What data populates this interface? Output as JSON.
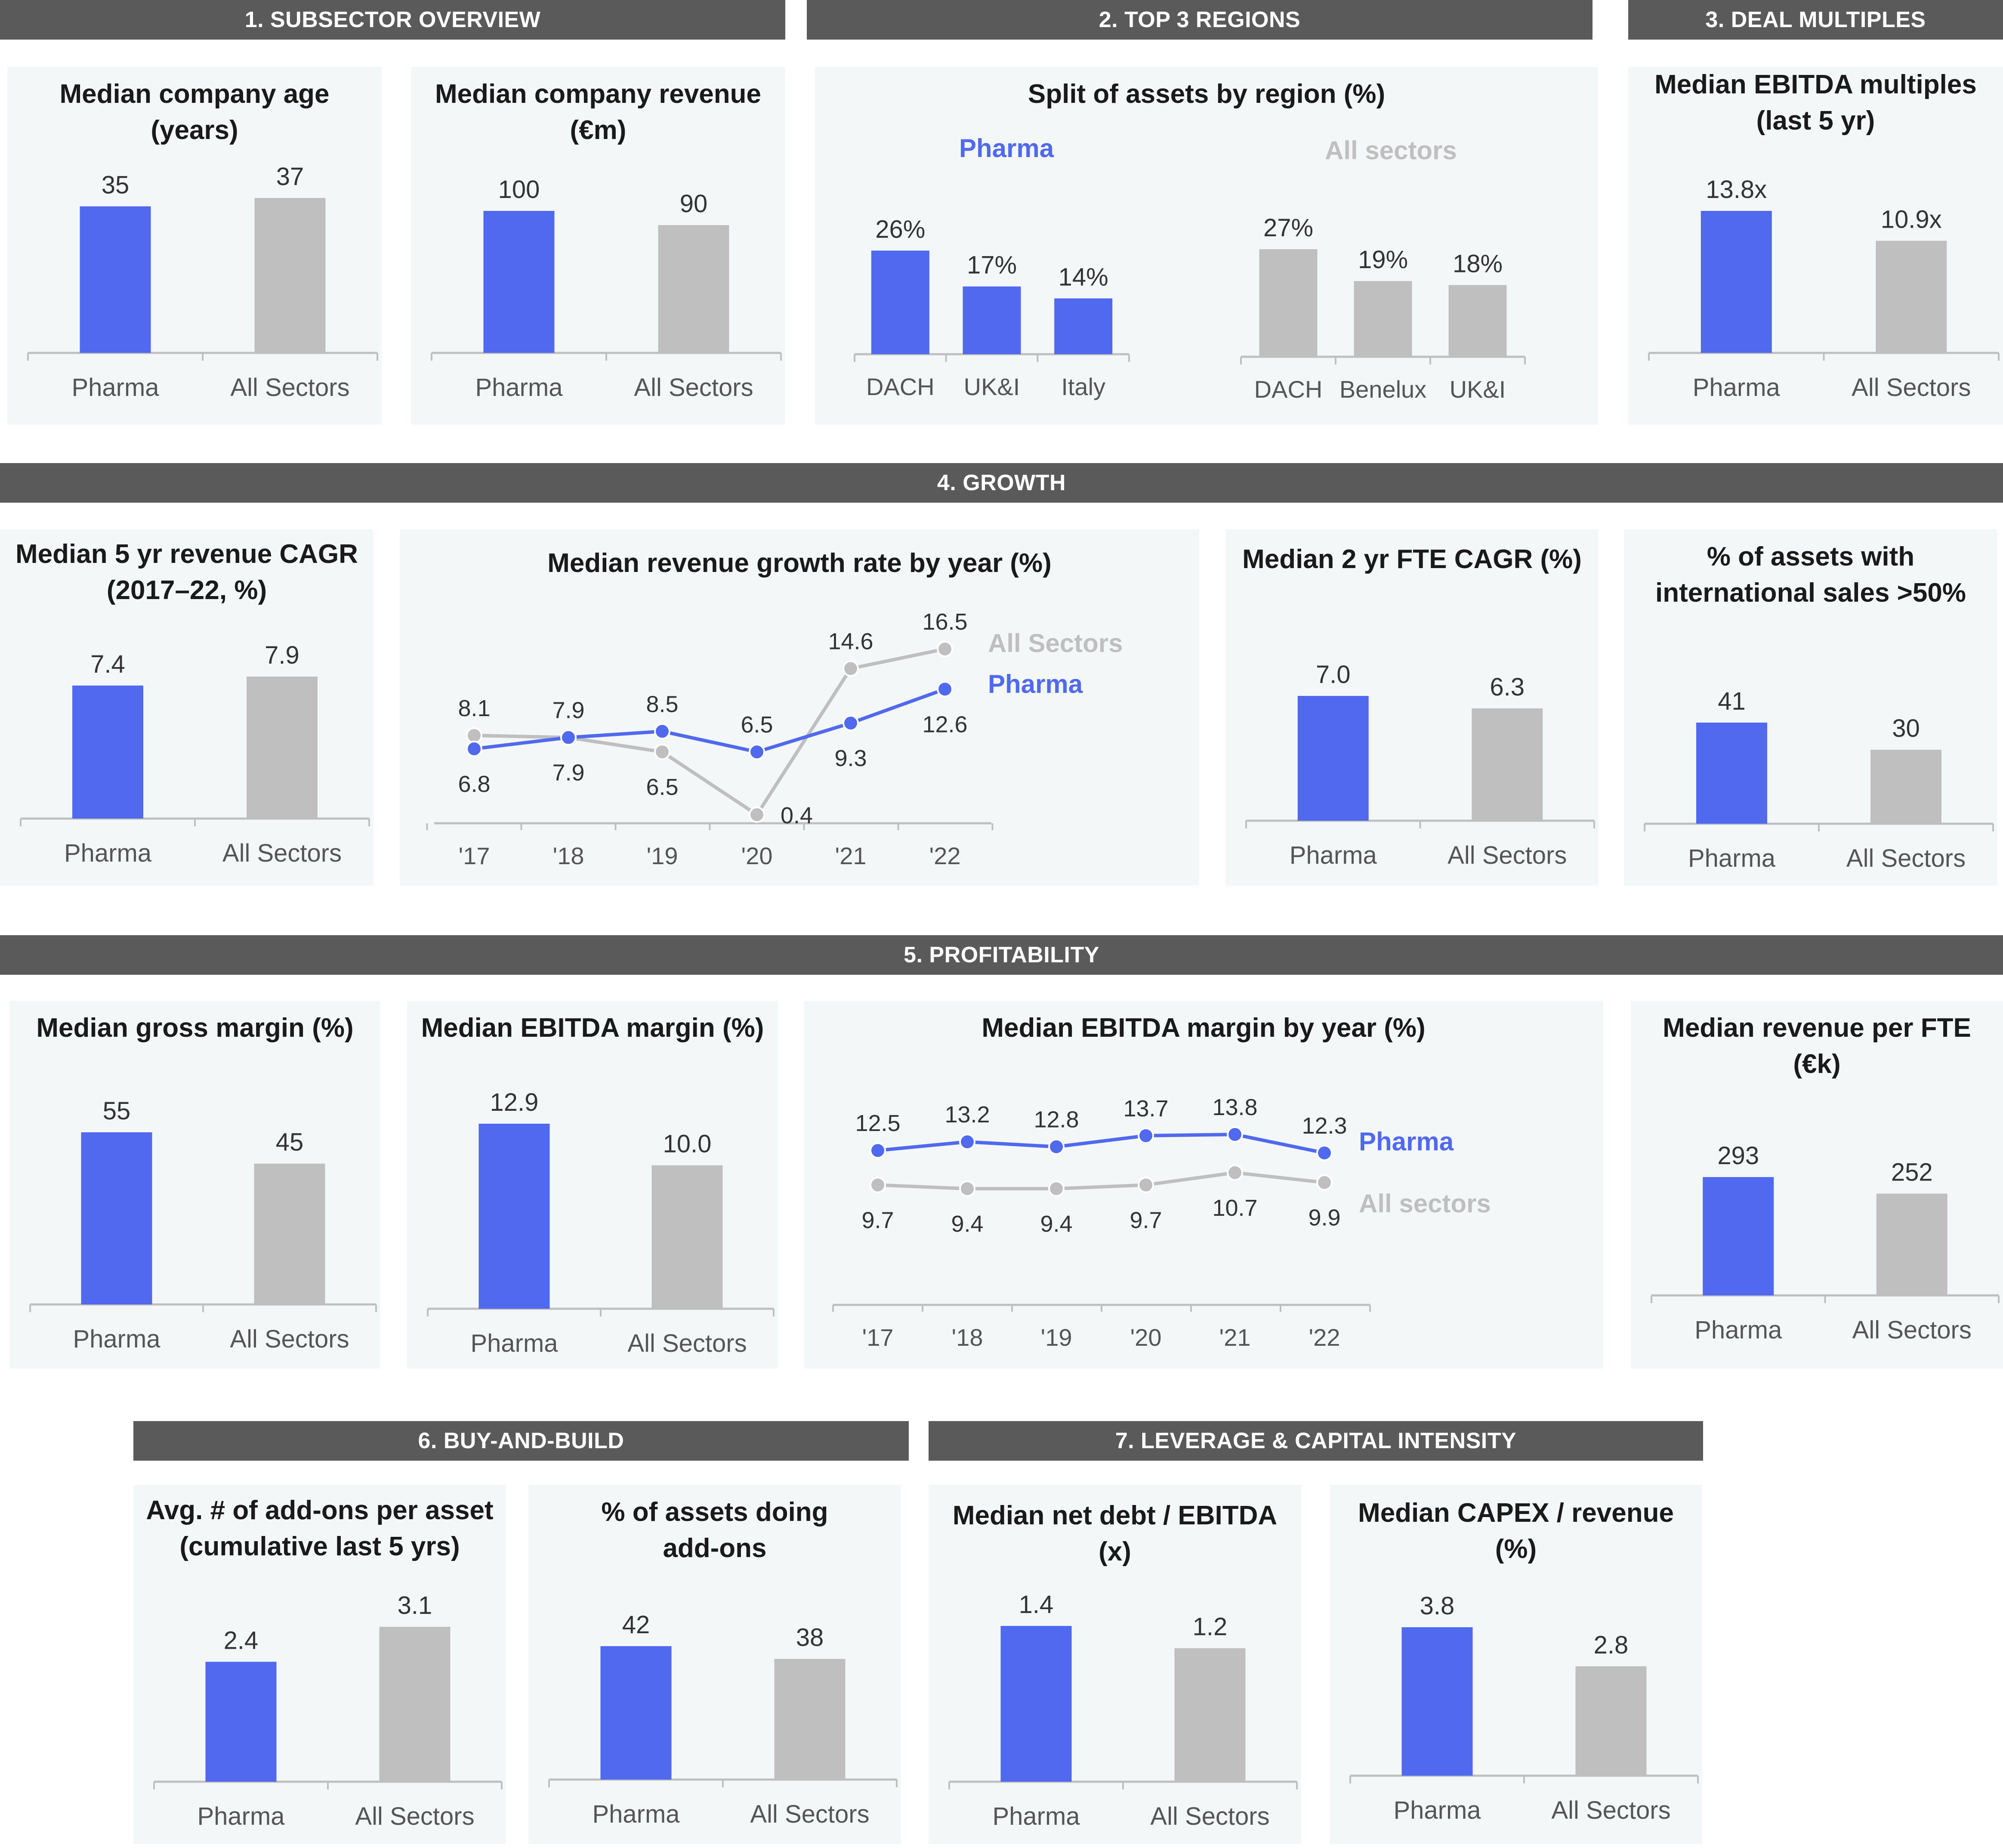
{
  "colors": {
    "pharma": "#5069ee",
    "all": "#bfbfbf",
    "header_bg": "#5a5a5a",
    "panel_bg": "#f4f7f8"
  },
  "sections": {
    "s1": "1. SUBSECTOR OVERVIEW",
    "s2": "2. TOP 3 REGIONS",
    "s3": "3. DEAL MULTIPLES",
    "s4": "4. GROWTH",
    "s5": "5.  PROFITABILITY",
    "s6": "6. BUY-AND-BUILD",
    "s7": "7. LEVERAGE & CAPITAL INTENSITY"
  },
  "region_labels": {
    "pharma": "Pharma",
    "all": "All sectors"
  },
  "chart_data": [
    {
      "id": "age",
      "type": "bar",
      "title1": "Median company age",
      "title2": "(years)",
      "categories": [
        "Pharma",
        "All Sectors"
      ],
      "values": [
        35,
        37
      ],
      "labels": [
        "35",
        "37"
      ]
    },
    {
      "id": "revenue",
      "type": "bar",
      "title1": "Median company revenue",
      "title2": "(€m)",
      "categories": [
        "Pharma",
        "All Sectors"
      ],
      "values": [
        100,
        90
      ],
      "labels": [
        "100",
        "90"
      ]
    },
    {
      "id": "region_pharma",
      "type": "bar",
      "title1": "Split of assets by region (%)",
      "series_name": "Pharma",
      "categories": [
        "DACH",
        "UK&I",
        "Italy"
      ],
      "values": [
        26,
        17,
        14
      ],
      "labels": [
        "26%",
        "17%",
        "14%"
      ]
    },
    {
      "id": "region_all",
      "type": "bar",
      "series_name": "All sectors",
      "categories": [
        "DACH",
        "Benelux",
        "UK&I"
      ],
      "values": [
        27,
        19,
        18
      ],
      "labels": [
        "27%",
        "19%",
        "18%"
      ]
    },
    {
      "id": "ebitda_mult",
      "type": "bar",
      "title1": "Median EBITDA multiples",
      "title2": "(last 5 yr)",
      "categories": [
        "Pharma",
        "All Sectors"
      ],
      "values": [
        13.8,
        10.9
      ],
      "labels": [
        "13.8x",
        "10.9x"
      ]
    },
    {
      "id": "cagr5",
      "type": "bar",
      "title1": "Median 5 yr revenue CAGR",
      "title2": "(2017–22, %)",
      "categories": [
        "Pharma",
        "All Sectors"
      ],
      "values": [
        7.4,
        7.9
      ],
      "labels": [
        "7.4",
        "7.9"
      ]
    },
    {
      "id": "growth_line",
      "type": "line",
      "title1": "Median revenue growth rate by year (%)",
      "x": [
        "'17",
        "'18",
        "'19",
        "'20",
        "'21",
        "'22"
      ],
      "series": [
        {
          "name": "Pharma",
          "values": [
            6.8,
            7.9,
            8.5,
            6.5,
            9.3,
            12.6
          ],
          "labels": [
            "6.8",
            "7.9",
            "8.5",
            "6.5",
            "9.3",
            "12.6"
          ]
        },
        {
          "name": "All Sectors",
          "values": [
            8.1,
            7.9,
            6.5,
            0.4,
            14.6,
            16.5
          ],
          "labels": [
            "8.1",
            "7.9",
            "6.5",
            "0.4",
            "14.6",
            "16.5"
          ]
        }
      ]
    },
    {
      "id": "fte_cagr",
      "type": "bar",
      "title1": "Median 2 yr FTE CAGR (%)",
      "categories": [
        "Pharma",
        "All Sectors"
      ],
      "values": [
        7.0,
        6.3
      ],
      "labels": [
        "7.0",
        "6.3"
      ]
    },
    {
      "id": "intl",
      "type": "bar",
      "title1": "% of assets with",
      "title2": "international sales >50%",
      "categories": [
        "Pharma",
        "All Sectors"
      ],
      "values": [
        41,
        30
      ],
      "labels": [
        "41",
        "30"
      ]
    },
    {
      "id": "gross_margin",
      "type": "bar",
      "title1": "Median gross margin (%)",
      "categories": [
        "Pharma",
        "All Sectors"
      ],
      "values": [
        55,
        45
      ],
      "labels": [
        "55",
        "45"
      ]
    },
    {
      "id": "ebitda_margin",
      "type": "bar",
      "title1": "Median EBITDA margin (%)",
      "categories": [
        "Pharma",
        "All Sectors"
      ],
      "values": [
        12.9,
        10.0
      ],
      "labels": [
        "12.9",
        "10.0"
      ]
    },
    {
      "id": "ebitda_line",
      "type": "line",
      "title1": "Median EBITDA margin by year (%)",
      "x": [
        "'17",
        "'18",
        "'19",
        "'20",
        "'21",
        "'22"
      ],
      "series": [
        {
          "name": "Pharma",
          "values": [
            12.5,
            13.2,
            12.8,
            13.7,
            13.8,
            12.3
          ],
          "labels": [
            "12.5",
            "13.2",
            "12.8",
            "13.7",
            "13.8",
            "12.3"
          ]
        },
        {
          "name": "All sectors",
          "values": [
            9.7,
            9.4,
            9.4,
            9.7,
            10.7,
            9.9
          ],
          "labels": [
            "9.7",
            "9.4",
            "9.4",
            "9.7",
            "10.7",
            "9.9"
          ]
        }
      ]
    },
    {
      "id": "rev_fte",
      "type": "bar",
      "title1": "Median revenue per FTE",
      "title2": "(€k)",
      "categories": [
        "Pharma",
        "All Sectors"
      ],
      "values": [
        293,
        252
      ],
      "labels": [
        "293",
        "252"
      ]
    },
    {
      "id": "addons",
      "type": "bar",
      "title1": "Avg. # of add-ons per asset",
      "title2": "(cumulative last 5 yrs)",
      "categories": [
        "Pharma",
        "All Sectors"
      ],
      "values": [
        2.4,
        3.1
      ],
      "labels": [
        "2.4",
        "3.1"
      ]
    },
    {
      "id": "addon_pct",
      "type": "bar",
      "title1": "% of assets doing",
      "title2": "add-ons",
      "categories": [
        "Pharma",
        "All Sectors"
      ],
      "values": [
        42,
        38
      ],
      "labels": [
        "42",
        "38"
      ]
    },
    {
      "id": "net_debt",
      "type": "bar",
      "title1": "Median net debt / EBITDA",
      "title2": "(x)",
      "categories": [
        "Pharma",
        "All Sectors"
      ],
      "values": [
        1.4,
        1.2
      ],
      "labels": [
        "1.4",
        "1.2"
      ]
    },
    {
      "id": "capex",
      "type": "bar",
      "title1": "Median CAPEX / revenue",
      "title2": "(%)",
      "categories": [
        "Pharma",
        "All Sectors"
      ],
      "values": [
        3.8,
        2.8
      ],
      "labels": [
        "3.8",
        "2.8"
      ]
    }
  ]
}
